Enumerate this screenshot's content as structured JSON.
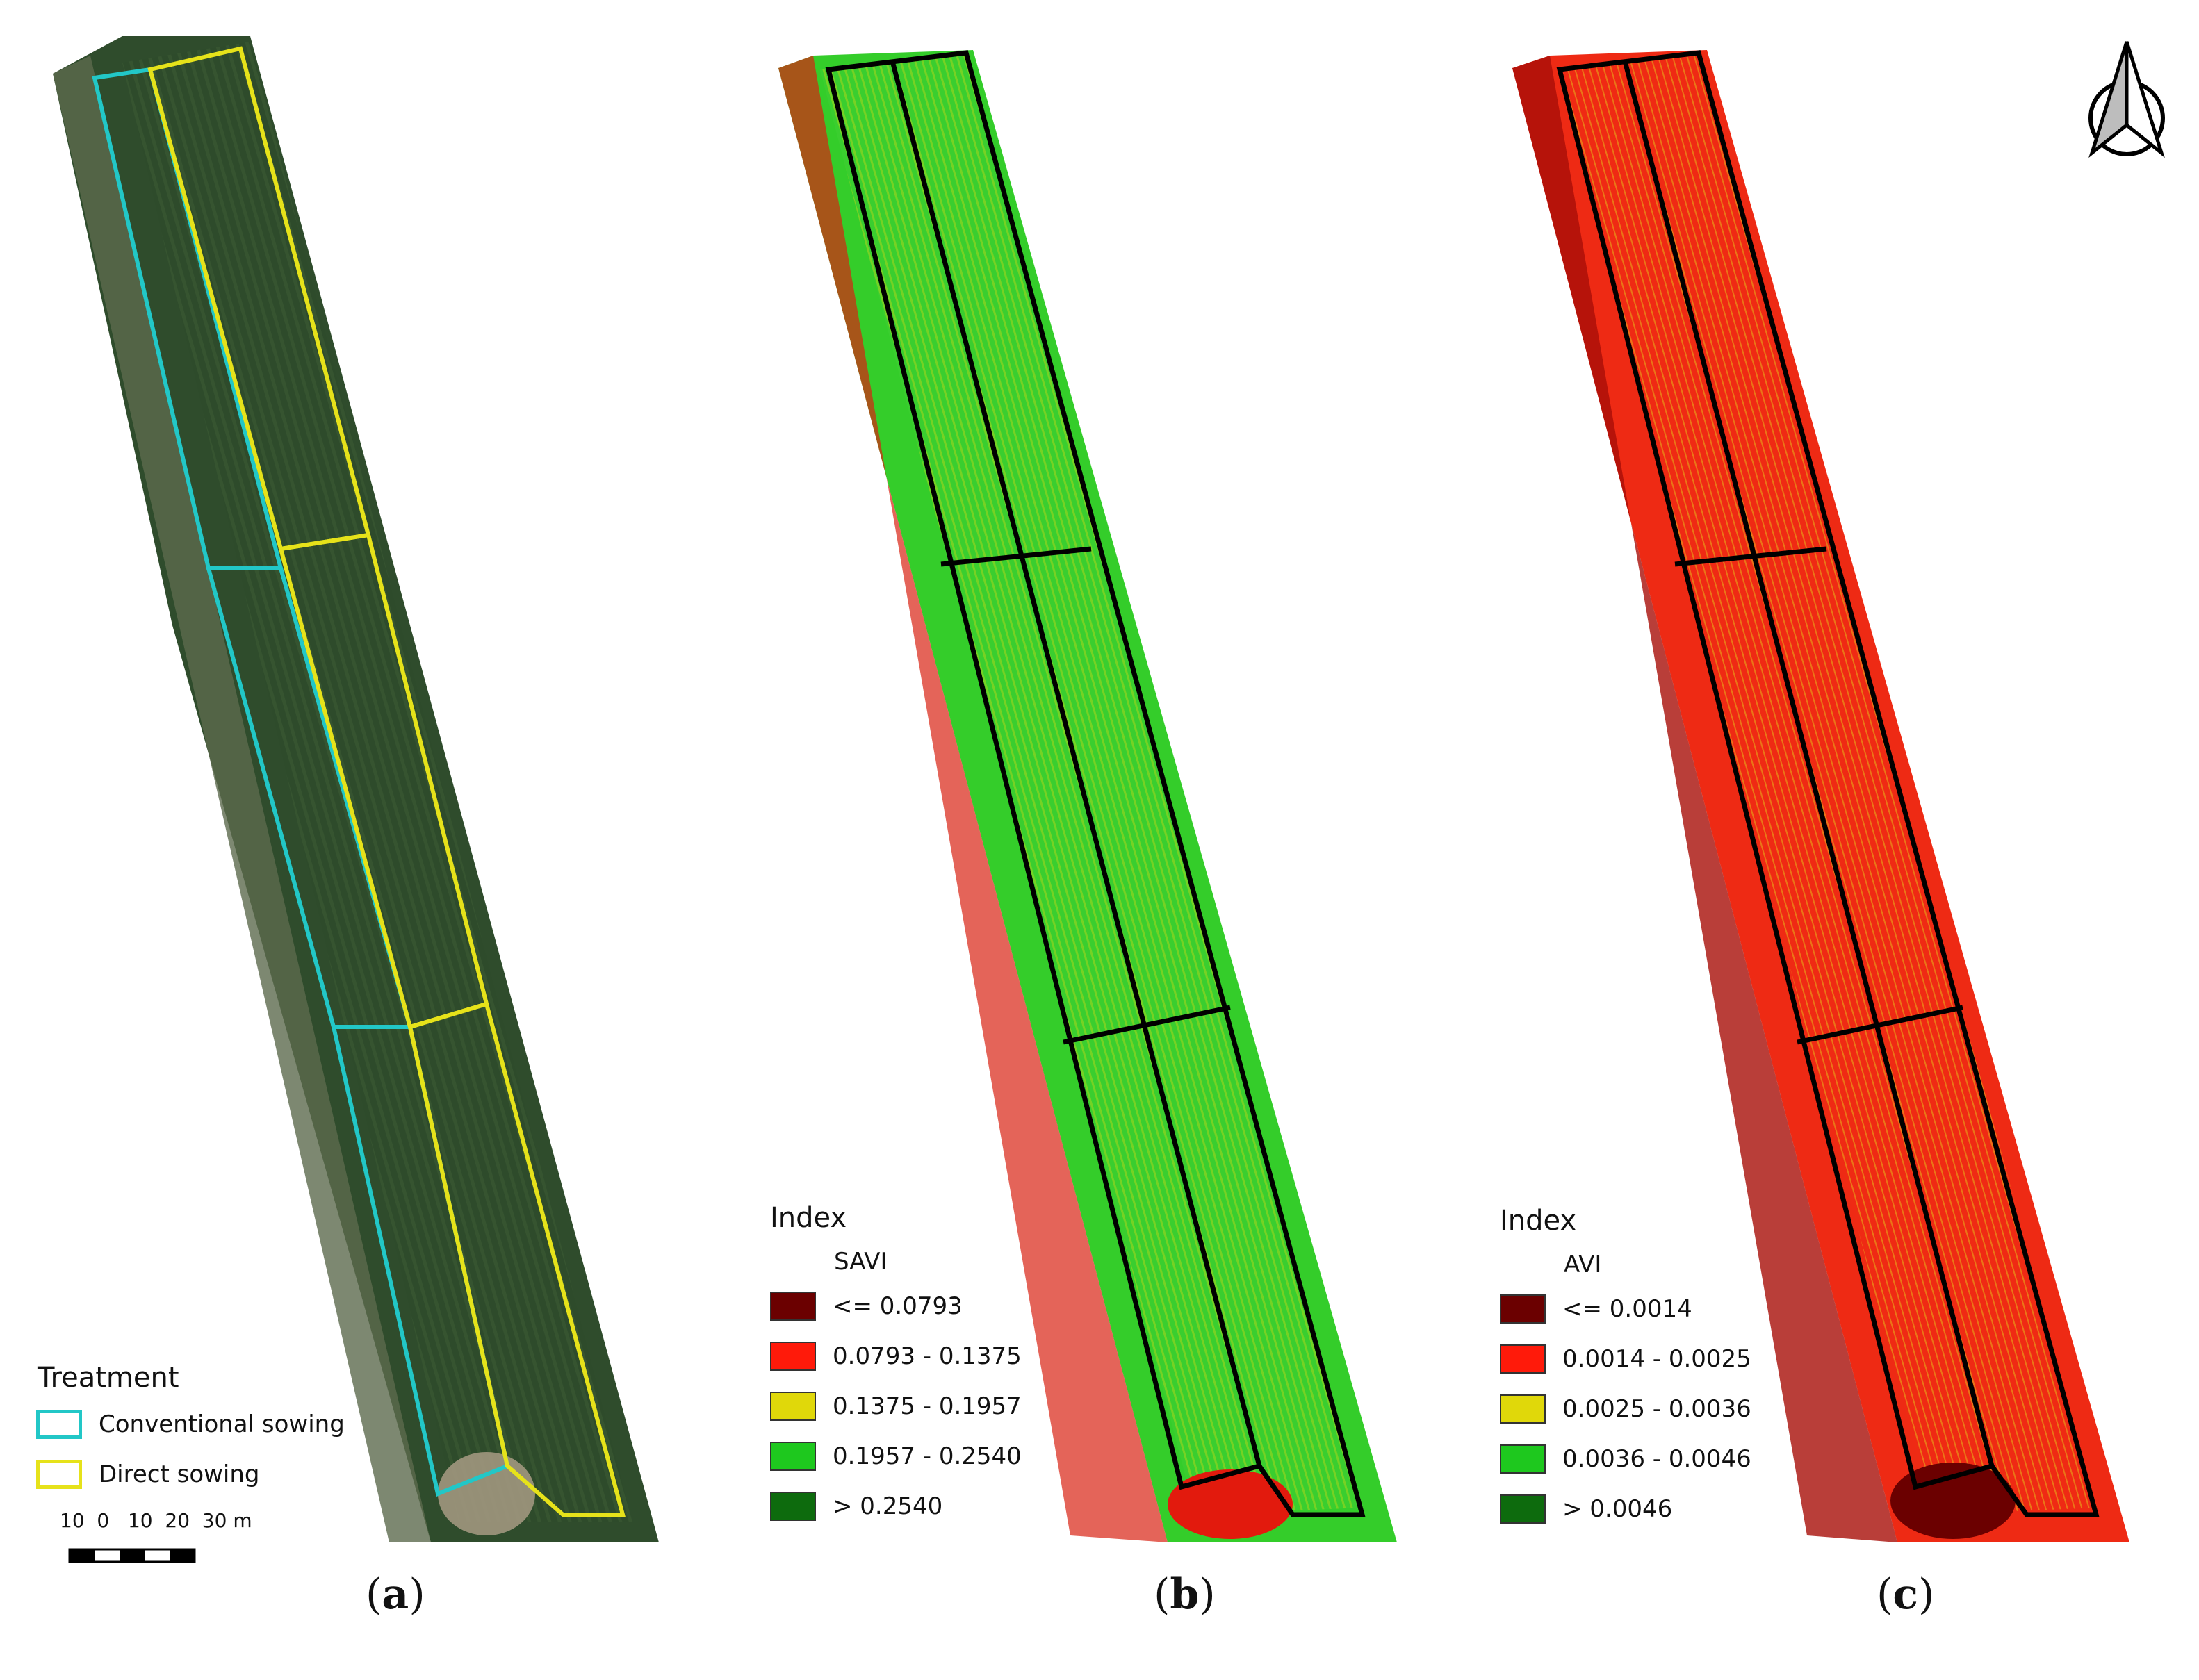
{
  "figure": {
    "panels": [
      {
        "caption": "a",
        "legend": {
          "title": "Treatment",
          "items": [
            {
              "label": "Conventional sowing",
              "color": "#22c7c7"
            },
            {
              "label": "Direct sowing",
              "color": "#e6e21a"
            }
          ]
        },
        "scale_bar": {
          "text": "10  0   10  20  30 m"
        }
      },
      {
        "caption": "b",
        "legend": {
          "title": "Index",
          "subtitle": "SAVI",
          "items": [
            {
              "label": "<= 0.0793",
              "color": "#6b0000"
            },
            {
              "label": "0.0793 - 0.1375",
              "color": "#ff1a0a"
            },
            {
              "label": "0.1375 - 0.1957",
              "color": "#e0d80a"
            },
            {
              "label": "0.1957 - 0.2540",
              "color": "#1ec81e"
            },
            {
              "label": "> 0.2540",
              "color": "#0d6b0d"
            }
          ]
        }
      },
      {
        "caption": "c",
        "legend": {
          "title": "Index",
          "subtitle": "AVI",
          "items": [
            {
              "label": "<= 0.0014",
              "color": "#6b0000"
            },
            {
              "label": "0.0014 - 0.0025",
              "color": "#ff1a0a"
            },
            {
              "label": "0.0025 - 0.0036",
              "color": "#e0d80a"
            },
            {
              "label": "0.0036 - 0.0046",
              "color": "#1ec81e"
            },
            {
              "label": "> 0.0046",
              "color": "#0d6b0d"
            }
          ]
        }
      }
    ],
    "north_arrow": {
      "icon": "north-arrow-icon"
    }
  }
}
